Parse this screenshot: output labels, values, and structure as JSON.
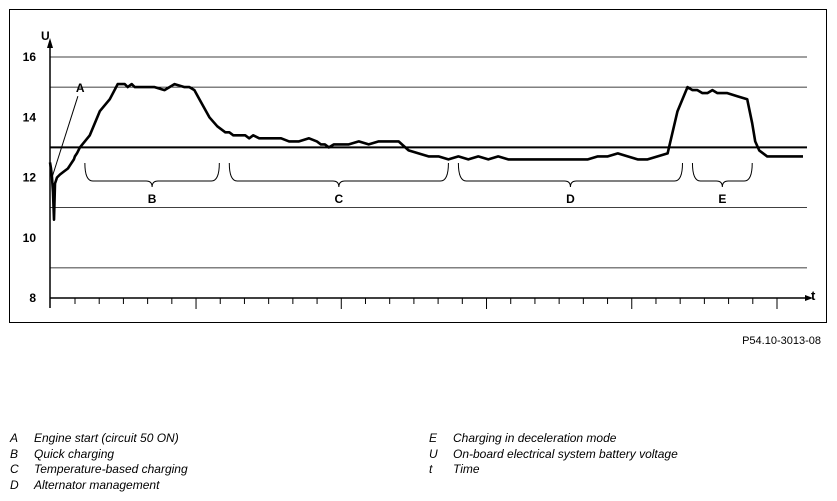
{
  "chart_data": {
    "type": "line",
    "ylabel": "U",
    "xlabel": "t",
    "ylim": [
      8,
      17
    ],
    "yticks": [
      8,
      10,
      12,
      14,
      16
    ],
    "y_gridlines": [
      9,
      11,
      13,
      15,
      16
    ],
    "reference_line": 13,
    "x_tick_count": 30,
    "series": [
      {
        "x": [
          0,
          1,
          2,
          3,
          4,
          5,
          7,
          10,
          14,
          18,
          20,
          22,
          24,
          25,
          27,
          30,
          40,
          50,
          60,
          68,
          72,
          75,
          78,
          82,
          85,
          88,
          95,
          105,
          115,
          125,
          135,
          140,
          145,
          150,
          160,
          168,
          172,
          176,
          180,
          184,
          188,
          192,
          196,
          200,
          204,
          210,
          220,
          232,
          240,
          250,
          260,
          268,
          272,
          276,
          280,
          285,
          290,
          300,
          310,
          320,
          330,
          340,
          350,
          360,
          370,
          380,
          390,
          400,
          410,
          420,
          430,
          440,
          450,
          460,
          470,
          480,
          490,
          500,
          510,
          520,
          530,
          540,
          550,
          560,
          570,
          580,
          590,
          600,
          610,
          620,
          630,
          640,
          645,
          650,
          655,
          660,
          665,
          670,
          680,
          690,
          700,
          705,
          708,
          712,
          716,
          720,
          730,
          740,
          750,
          756
        ],
        "values": [
          12.5,
          12.3,
          12.0,
          11.5,
          10.6,
          11.8,
          12.0,
          12.1,
          12.2,
          12.3,
          12.4,
          12.5,
          12.6,
          12.7,
          12.8,
          13.0,
          13.4,
          14.2,
          14.6,
          15.1,
          15.1,
          15.1,
          15.0,
          15.1,
          15.0,
          15.0,
          15.0,
          15.0,
          14.9,
          15.1,
          15.0,
          15.0,
          14.9,
          14.6,
          14.0,
          13.7,
          13.6,
          13.5,
          13.5,
          13.4,
          13.4,
          13.4,
          13.4,
          13.3,
          13.4,
          13.3,
          13.3,
          13.3,
          13.2,
          13.2,
          13.3,
          13.2,
          13.1,
          13.1,
          13.0,
          13.1,
          13.1,
          13.1,
          13.2,
          13.1,
          13.2,
          13.2,
          13.2,
          12.9,
          12.8,
          12.7,
          12.7,
          12.6,
          12.7,
          12.6,
          12.7,
          12.6,
          12.7,
          12.6,
          12.6,
          12.6,
          12.6,
          12.6,
          12.6,
          12.6,
          12.6,
          12.6,
          12.7,
          12.7,
          12.8,
          12.7,
          12.6,
          12.6,
          12.7,
          12.8,
          14.2,
          15.0,
          14.9,
          14.9,
          14.8,
          14.8,
          14.9,
          14.8,
          14.8,
          14.7,
          14.6,
          13.8,
          13.2,
          12.9,
          12.8,
          12.7,
          12.7,
          12.7,
          12.7,
          12.7
        ]
      }
    ],
    "annotations": [
      {
        "label": "A",
        "x_start": 0,
        "x_end": 28
      },
      {
        "label": "B",
        "x_start": 35,
        "x_end": 170
      },
      {
        "label": "C",
        "x_start": 180,
        "x_end": 400
      },
      {
        "label": "D",
        "x_start": 410,
        "x_end": 635
      },
      {
        "label": "E",
        "x_start": 645,
        "x_end": 705
      }
    ]
  },
  "figure_ref": "P54.10-3013-08",
  "legend_left": [
    {
      "key": "A",
      "text": "Engine start (circuit 50 ON)"
    },
    {
      "key": "B",
      "text": "Quick charging"
    },
    {
      "key": "C",
      "text": "Temperature-based charging"
    },
    {
      "key": "D",
      "text": "Alternator management"
    }
  ],
  "legend_right": [
    {
      "key": "E",
      "text": "Charging in deceleration mode"
    },
    {
      "key": "U",
      "text": "On-board electrical system battery voltage"
    },
    {
      "key": "t",
      "text": "Time"
    }
  ]
}
